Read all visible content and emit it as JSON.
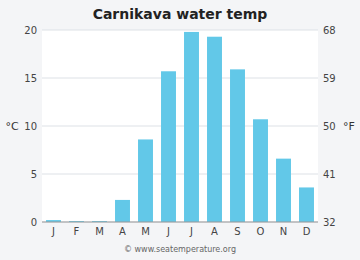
{
  "chart_data": {
    "type": "bar",
    "title": "Carnikava water temp",
    "categories": [
      "J",
      "F",
      "M",
      "A",
      "M",
      "J",
      "J",
      "A",
      "S",
      "O",
      "N",
      "D"
    ],
    "values": [
      0.2,
      0.1,
      0.1,
      2.3,
      8.6,
      15.7,
      19.8,
      19.3,
      15.9,
      10.7,
      6.6,
      3.6
    ],
    "color": "#62c8e8",
    "ylabel": "°C",
    "y2label": "°F",
    "ylim": [
      0,
      20
    ],
    "yticks": [
      0,
      5,
      10,
      15,
      20
    ],
    "y2lim": [
      32,
      68
    ],
    "y2ticks": [
      32,
      41,
      50,
      59,
      68
    ],
    "grid": true,
    "annotations": [
      "© www.seatemperature.org"
    ]
  }
}
